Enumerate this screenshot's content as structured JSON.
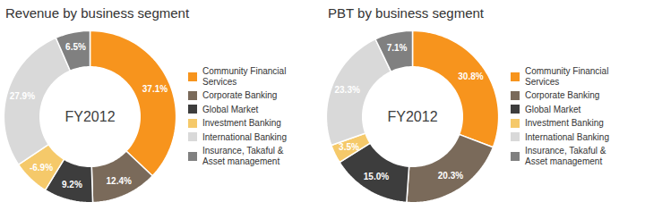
{
  "chart_data": [
    {
      "type": "pie",
      "title": "Revenue by business segment",
      "categories": [
        "Community Financial\nServices",
        "Corporate Banking",
        "Global Market",
        "Investment Banking",
        "International Banking",
        "Insurance, Takaful &\nAsset management"
      ],
      "values": [
        37.1,
        12.4,
        9.2,
        -6.9,
        27.9,
        6.5
      ],
      "value_labels": [
        "37.1%",
        "12.4%",
        "9.2%",
        "-6.9%",
        "27.9%",
        "6.5%"
      ],
      "colors": [
        "#F7941D",
        "#7A6A5A",
        "#3D3D3D",
        "#F5C96A",
        "#D9D9D9",
        "#808080"
      ],
      "data_labels": true,
      "legend": "right",
      "annotations": [
        "FY2012"
      ]
    },
    {
      "type": "pie",
      "title": "PBT by business segment",
      "categories": [
        "Community Financial\nServices",
        "Corporate Banking",
        "Global Market",
        "Investment Banking",
        "International Banking",
        "Insurance, Takaful &\nAsset management"
      ],
      "values": [
        30.8,
        20.3,
        15.0,
        3.5,
        23.3,
        7.1
      ],
      "value_labels": [
        "30.8%",
        "20.3%",
        "15.0%",
        "3.5%",
        "23.3%",
        "7.1%"
      ],
      "colors": [
        "#F7941D",
        "#7A6A5A",
        "#3D3D3D",
        "#F5C96A",
        "#D9D9D9",
        "#808080"
      ],
      "data_labels": true,
      "legend": "right",
      "annotations": [
        "FY2012"
      ]
    }
  ]
}
